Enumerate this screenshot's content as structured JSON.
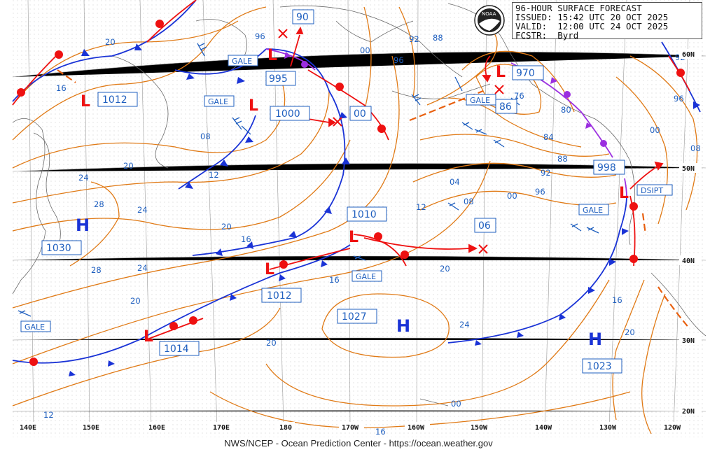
{
  "header": {
    "line1": "96-HOUR SURFACE FORECAST",
    "line2": "ISSUED: 15:42 UTC 20 OCT 2025",
    "line3": "VALID:  12:00 UTC 24 OCT 2025",
    "line4": "FCSTR:  Byrd",
    "logo": "NOAA"
  },
  "footer": "NWS/NCEP - Ocean Prediction Center - https://ocean.weather.gov",
  "lon_labels": [
    "140E",
    "150E",
    "160E",
    "170E",
    "180",
    "170W",
    "160W",
    "150W",
    "140W",
    "130W",
    "120W"
  ],
  "lat_labels": [
    "50N",
    "40N",
    "30N",
    "20N"
  ],
  "lat_label_top": "60N",
  "centers": {
    "low1012": "1012",
    "low995": "995",
    "low1000": "1000",
    "low1010": "1010",
    "low1012b": "1012",
    "low1014": "1014",
    "low970": "970",
    "low998": "998",
    "high1030": "1030",
    "high1027": "1027",
    "high1023": "1023",
    "fc90": "90",
    "fc00": "00",
    "fc06": "06",
    "fc86": "86"
  },
  "symbols": {
    "L": "L",
    "H": "H",
    "gale": "GALE",
    "dsipt": "DSIPT"
  },
  "iso_labels": [
    "20",
    "16",
    "12",
    "08",
    "24",
    "28",
    "20",
    "24",
    "24",
    "20",
    "16",
    "20",
    "16",
    "12",
    "04",
    "08",
    "00",
    "96",
    "92",
    "88",
    "84",
    "80",
    "76",
    "92",
    "88",
    "96",
    "00",
    "08",
    "96",
    "92",
    "00",
    "16",
    "20",
    "24",
    "20",
    "16",
    "12",
    "20",
    "00",
    "96",
    "28"
  ]
}
